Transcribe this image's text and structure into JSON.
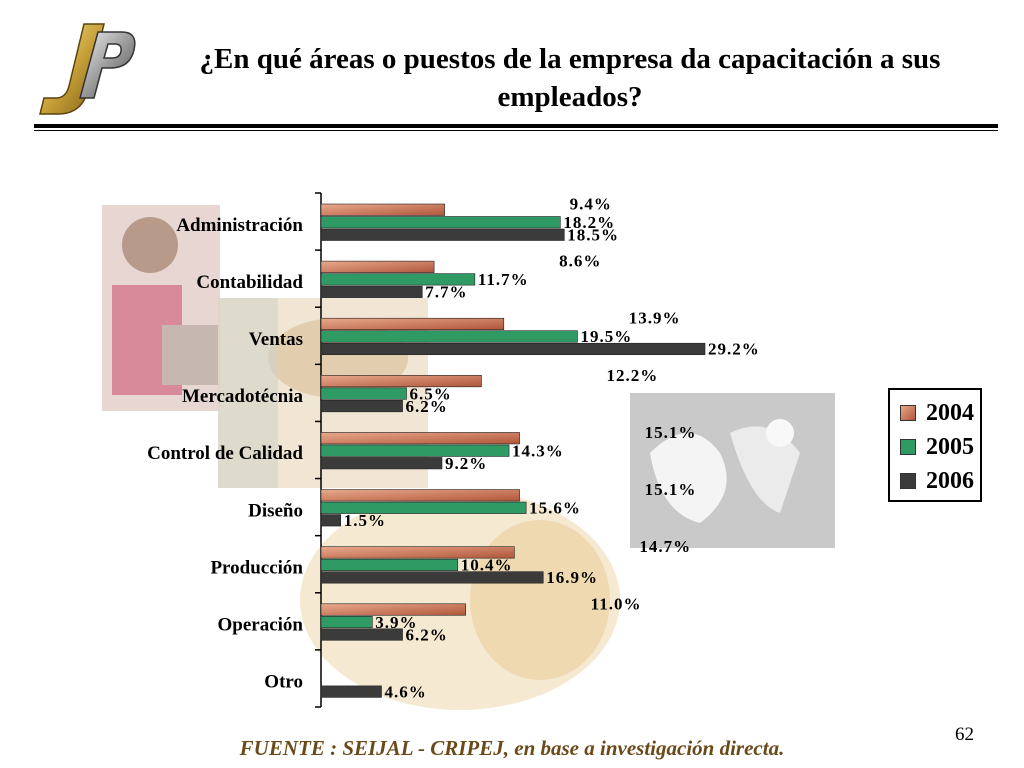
{
  "title": "¿En qué áreas o puestos de la empresa da capacitación a sus empleados?",
  "source": "FUENTE :  SEIJAL - CRIPEJ,  en base a investigación directa.",
  "page_number": "62",
  "colors": {
    "series_2004": "#c8704a",
    "series_2005": "#2f9a64",
    "series_2006": "#3b3b3b",
    "source_text": "#6b4a1a"
  },
  "chart_data": {
    "type": "bar",
    "orientation": "horizontal",
    "categories": [
      "Administración",
      "Contabilidad",
      "Ventas",
      "Mercadotécnia",
      "Control de Calidad",
      "Diseño",
      "Producción",
      "Operación",
      "Otro"
    ],
    "series": [
      {
        "name": "2004",
        "values": [
          9.4,
          8.6,
          13.9,
          12.2,
          15.1,
          15.1,
          14.7,
          11.0,
          null
        ],
        "labels": [
          "9.4%",
          "8.6%",
          "13.9%",
          "12.2%",
          "15.1%",
          "15.1%",
          "14.7%",
          "11.0%",
          ""
        ]
      },
      {
        "name": "2005",
        "values": [
          18.2,
          11.7,
          19.5,
          6.5,
          14.3,
          15.6,
          10.4,
          3.9,
          null
        ],
        "labels": [
          "18.2%",
          "11.7%",
          "19.5%",
          "6.5%",
          "14.3%",
          "15.6%",
          "10.4%",
          "3.9%",
          ""
        ]
      },
      {
        "name": "2006",
        "values": [
          18.5,
          7.7,
          29.2,
          6.2,
          9.2,
          1.5,
          16.9,
          6.2,
          4.6
        ],
        "labels": [
          "18.5%",
          "7.7%",
          "29.2%",
          "6.2%",
          "9.2%",
          "1.5%",
          "16.9%",
          "6.2%",
          "4.6%"
        ]
      }
    ],
    "xlim": [
      0,
      30
    ],
    "grid": false,
    "legend": "right",
    "legend_entries": [
      "2004",
      "2005",
      "2006"
    ]
  }
}
